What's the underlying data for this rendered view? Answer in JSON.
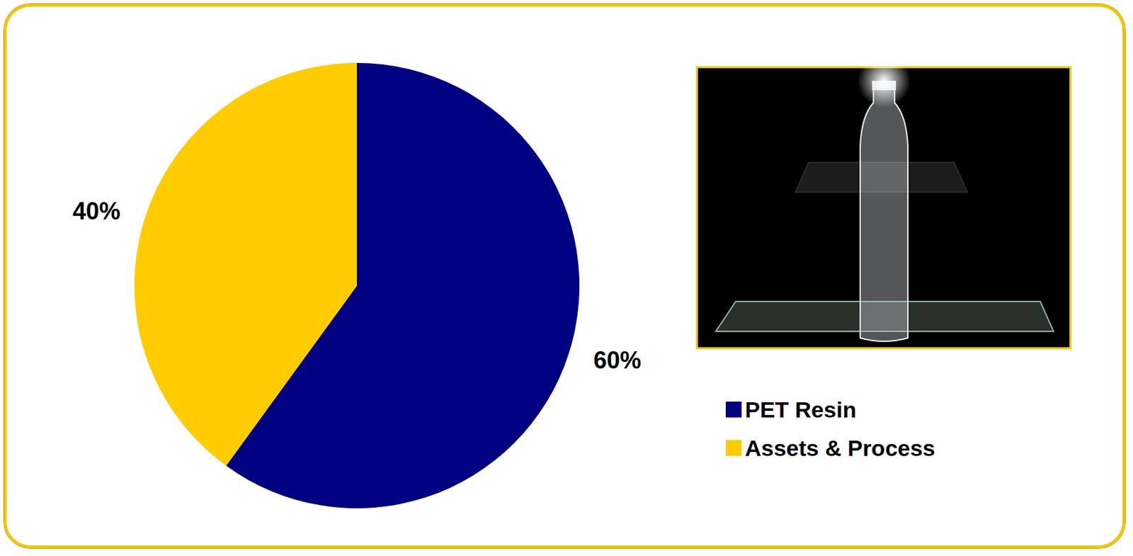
{
  "chart_data": {
    "type": "pie",
    "categories": [
      "PET Resin",
      "Assets & Process"
    ],
    "values": [
      60,
      40
    ],
    "value_labels": [
      "60%",
      "40%"
    ],
    "colors": [
      "#000080",
      "#ffcc00"
    ],
    "data_labels": true,
    "legend": "right"
  }
}
